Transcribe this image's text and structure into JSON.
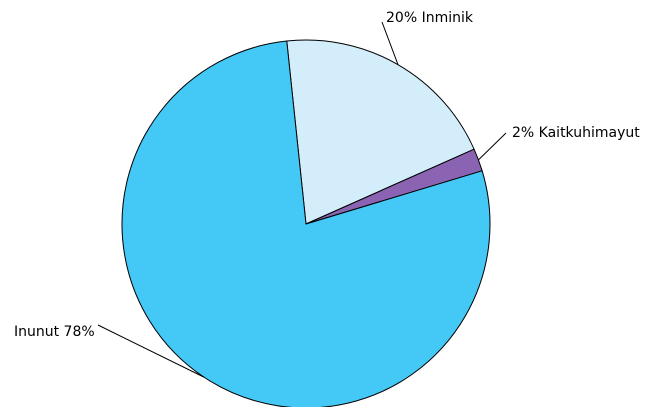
{
  "chart_data": {
    "type": "pie",
    "slices": [
      {
        "label": "Inminik",
        "display": "20% Inminik",
        "value": 20,
        "color": "#d3eefa"
      },
      {
        "label": "Kaitkuhimayut",
        "display": "2% Kaitkuhimayut",
        "value": 2,
        "color": "#8a63b2"
      },
      {
        "label": "Inunut",
        "display": "Inunut 78%",
        "value": 78,
        "color": "#44c8f5"
      }
    ],
    "legend": "none",
    "stroke_color": "#000000"
  }
}
